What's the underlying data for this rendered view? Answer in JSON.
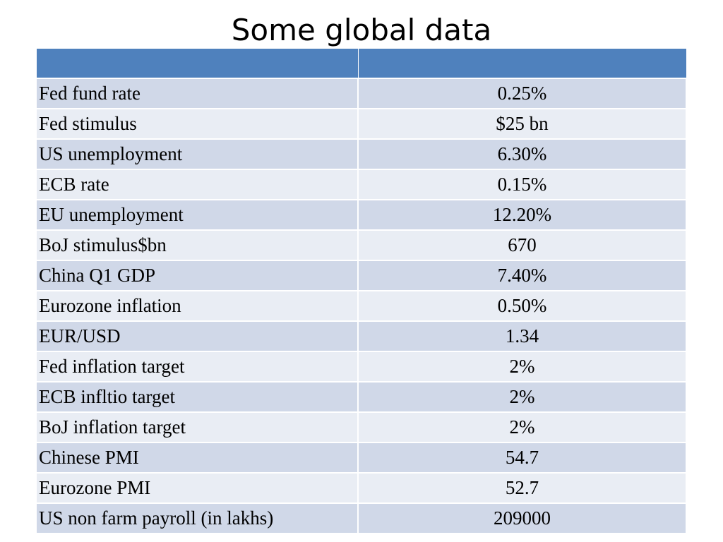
{
  "title": "Some global data",
  "colors": {
    "header": "#4f81bd",
    "row_dark": "#d0d8e8",
    "row_light": "#e9edf4"
  },
  "table": {
    "header": [
      "",
      ""
    ],
    "rows": [
      {
        "label": "Fed fund rate",
        "value": "0.25%"
      },
      {
        "label": "Fed stimulus",
        "value": "$25 bn"
      },
      {
        "label": "US unemployment",
        "value": "6.30%"
      },
      {
        "label": "ECB rate",
        "value": "0.15%"
      },
      {
        "label": "EU unemployment",
        "value": "12.20%"
      },
      {
        "label": "BoJ stimulus$bn",
        "value": "670"
      },
      {
        "label": "China Q1 GDP",
        "value": "7.40%"
      },
      {
        "label": "Eurozone inflation",
        "value": "0.50%"
      },
      {
        "label": "EUR/USD",
        "value": "1.34"
      },
      {
        "label": "Fed inflation target",
        "value": "2%"
      },
      {
        "label": "ECB infltio target",
        "value": "2%"
      },
      {
        "label": "BoJ inflation target",
        "value": "2%"
      },
      {
        "label": "Chinese PMI",
        "value": "54.7"
      },
      {
        "label": "Eurozone PMI",
        "value": "52.7"
      },
      {
        "label": "US non farm payroll (in lakhs)",
        "value": "209000"
      }
    ]
  }
}
